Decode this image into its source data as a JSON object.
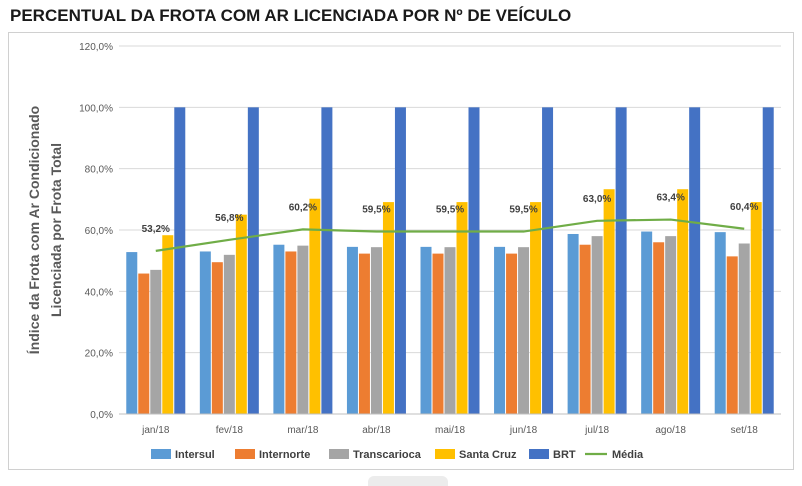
{
  "title": "PERCENTUAL DA FROTA COM AR LICENCIADA POR Nº DE VEÍCULO",
  "colors": {
    "Intersul": "#5b9bd5",
    "Internorte": "#ed7d31",
    "Transcarioca": "#a5a5a5",
    "Santa Cruz": "#ffc000",
    "BRT": "#4472c4",
    "Média": "#70ad47",
    "grid": "#d9d9d9",
    "axis_text": "#595959"
  },
  "chart_data": {
    "type": "bar",
    "title": "PERCENTUAL DA FROTA COM AR LICENCIADA POR Nº DE VEÍCULO",
    "ylabel_lines": [
      "Índice da Frota com Ar Condicionado",
      "Licenciada por Frota Total"
    ],
    "ylim": [
      0,
      120
    ],
    "yticks": [
      "0,0%",
      "20,0%",
      "40,0%",
      "60,0%",
      "80,0%",
      "100,0%",
      "120,0%"
    ],
    "grid": true,
    "legend_position": "bottom",
    "categories": [
      "jan/18",
      "fev/18",
      "mar/18",
      "abr/18",
      "mai/18",
      "jun/18",
      "jul/18",
      "ago/18",
      "set/18"
    ],
    "series": [
      {
        "name": "Intersul",
        "values": [
          52.8,
          53.0,
          55.2,
          54.5,
          54.5,
          54.5,
          58.7,
          59.5,
          59.3
        ]
      },
      {
        "name": "Internorte",
        "values": [
          45.8,
          49.5,
          53.0,
          52.3,
          52.3,
          52.3,
          55.2,
          56.0,
          51.4
        ]
      },
      {
        "name": "Transcarioca",
        "values": [
          47.0,
          51.9,
          54.9,
          54.4,
          54.4,
          54.4,
          58.0,
          58.0,
          55.6
        ]
      },
      {
        "name": "Santa Cruz",
        "values": [
          58.3,
          65.0,
          70.2,
          69.1,
          69.1,
          69.1,
          73.3,
          73.3,
          69.1
        ]
      },
      {
        "name": "BRT",
        "values": [
          100,
          100,
          100,
          100,
          100,
          100,
          100,
          100,
          100
        ]
      }
    ],
    "line_series": {
      "name": "Média",
      "values": [
        53.2,
        56.8,
        60.2,
        59.5,
        59.5,
        59.5,
        63.0,
        63.4,
        60.4
      ],
      "labels": [
        "53,2%",
        "56,8%",
        "60,2%",
        "59,5%",
        "59,5%",
        "59,5%",
        "63,0%",
        "63,4%",
        "60,4%"
      ]
    },
    "legend": [
      "Intersul",
      "Internorte",
      "Transcarioca",
      "Santa Cruz",
      "BRT",
      "Média"
    ]
  }
}
